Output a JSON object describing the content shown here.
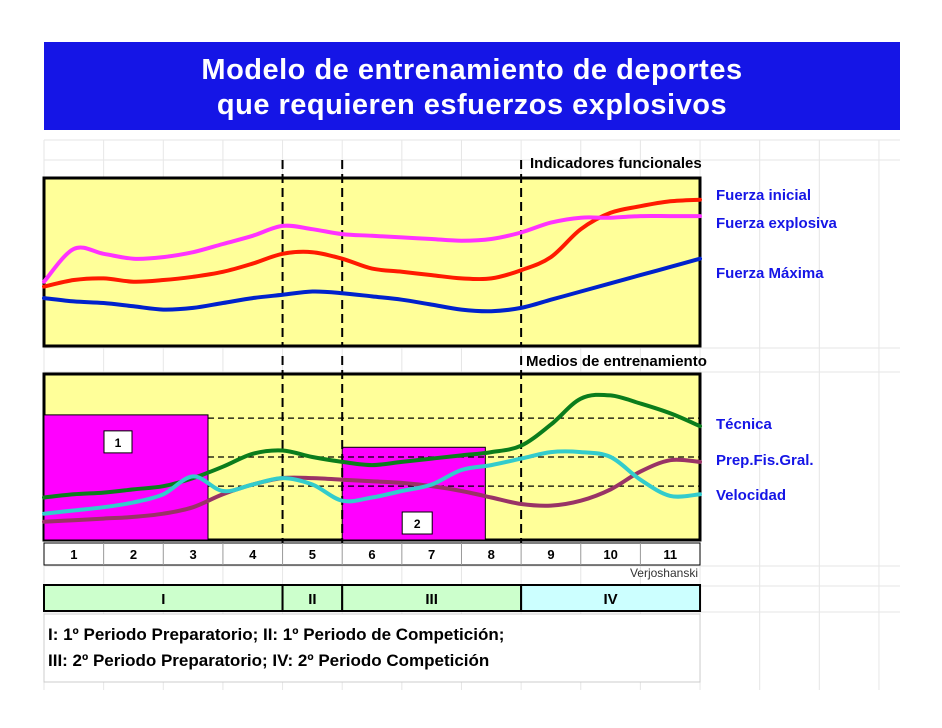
{
  "title": {
    "line1": "Modelo de entrenamiento de deportes",
    "line2": "que requieren esfuerzos explosivos"
  },
  "colors": {
    "banner": "#1515e6",
    "panel_bg": "#ffff99",
    "box_fill": "#ff00ff",
    "label_blue": "#1515e6",
    "fuerza_inicial": "#ff1a00",
    "fuerza_explosiva": "#ff33ff",
    "fuerza_maxima": "#0022cc",
    "tecnica": "#0b7d1c",
    "prep_fis_gral": "#993366",
    "velocidad": "#33cccc",
    "period_I": "#ccffcc",
    "period_IV": "#ccffff"
  },
  "chart_data": [
    {
      "type": "line",
      "title": "Indicadores funcionales",
      "x": [
        0,
        0.5,
        1,
        1.5,
        2,
        2.5,
        3,
        3.5,
        4,
        4.5,
        5,
        5.5,
        6,
        6.5,
        7,
        7.5,
        8,
        8.5,
        9,
        9.5,
        10,
        10.5,
        11
      ],
      "ylim": [
        0,
        100
      ],
      "phase_dividers": [
        4,
        5,
        8
      ],
      "series": [
        {
          "name": "Fuerza inicial",
          "color": "#ff1a00",
          "values": [
            35,
            39,
            40,
            38,
            39,
            41,
            44,
            49,
            55,
            56,
            52,
            46,
            44,
            42,
            40,
            40,
            45,
            53,
            70,
            80,
            84,
            87,
            88
          ]
        },
        {
          "name": "Fuerza explosiva",
          "color": "#ff33ff",
          "values": [
            38,
            58,
            55,
            52,
            53,
            56,
            61,
            66,
            72,
            70,
            67,
            66,
            65,
            64,
            63,
            64,
            68,
            74,
            77,
            77,
            78,
            78,
            78
          ]
        },
        {
          "name": "Fuerza Máxima",
          "color": "#0022cc",
          "values": [
            28,
            26,
            25,
            23,
            21,
            22,
            25,
            28,
            30,
            32,
            31,
            29,
            27,
            24,
            21,
            20,
            22,
            27,
            32,
            37,
            42,
            47,
            52
          ]
        }
      ]
    },
    {
      "type": "line",
      "title": "Medios de entrenamiento",
      "x": [
        0,
        0.5,
        1,
        1.5,
        2,
        2.5,
        3,
        3.5,
        4,
        4.5,
        5,
        5.5,
        6,
        6.5,
        7,
        7.5,
        8,
        8.5,
        9,
        9.5,
        10,
        10.5,
        11
      ],
      "categories": [
        "1",
        "2",
        "3",
        "4",
        "5",
        "6",
        "7",
        "8",
        "9",
        "10",
        "11"
      ],
      "ylim": [
        0,
        100
      ],
      "phase_dividers": [
        4,
        5,
        8
      ],
      "reference_lines": [
        74,
        50,
        32
      ],
      "load_boxes": [
        {
          "label": "1",
          "x0": 0,
          "x1": 2.75,
          "height": 76
        },
        {
          "label": "2",
          "x0": 5,
          "x1": 7.4,
          "height": 56
        }
      ],
      "series": [
        {
          "name": "Técnica",
          "color": "#0b7d1c",
          "values": [
            25,
            27,
            28,
            30,
            32,
            37,
            44,
            52,
            54,
            50,
            47,
            45,
            47,
            49,
            51,
            53,
            57,
            70,
            86,
            88,
            83,
            77,
            69
          ]
        },
        {
          "name": "Prep.Fis.Gral.",
          "color": "#993366",
          "values": [
            10,
            11,
            12,
            13,
            15,
            19,
            27,
            33,
            37,
            37,
            36,
            35,
            34,
            32,
            29,
            25,
            21,
            20,
            23,
            30,
            41,
            48,
            47
          ]
        },
        {
          "name": "Velocidad",
          "color": "#33cccc",
          "values": [
            15,
            17,
            19,
            22,
            27,
            38,
            29,
            33,
            37,
            33,
            23,
            25,
            29,
            33,
            42,
            45,
            49,
            53,
            53,
            50,
            36,
            26,
            27
          ]
        }
      ]
    }
  ],
  "axis": {
    "ticks": [
      "1",
      "2",
      "3",
      "4",
      "5",
      "6",
      "7",
      "8",
      "9",
      "10",
      "11"
    ],
    "source": "Verjoshanski"
  },
  "periods": [
    {
      "label": "I",
      "from": 0,
      "to": 4
    },
    {
      "label": "II",
      "from": 4,
      "to": 5
    },
    {
      "label": "III",
      "from": 5,
      "to": 8
    },
    {
      "label": "IV",
      "from": 8,
      "to": 11
    }
  ],
  "legend": {
    "line1": "I: 1º Periodo Preparatorio; II: 1º Periodo de Competición;",
    "line2": "III: 2º Periodo Preparatorio; IV: 2º Periodo Competición"
  }
}
